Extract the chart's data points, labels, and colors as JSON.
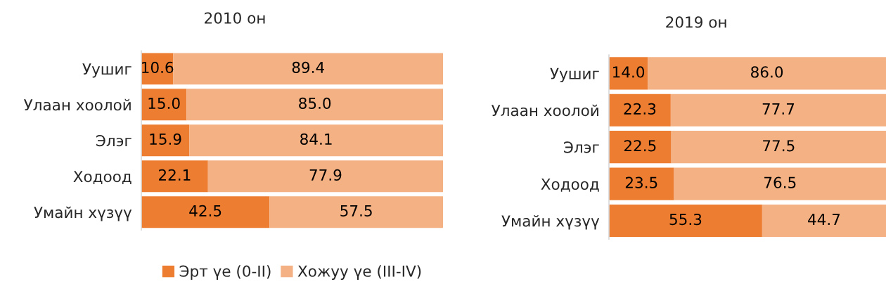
{
  "chart_data": [
    {
      "type": "bar",
      "orientation": "horizontal",
      "stacked": true,
      "title": "2010 он",
      "categories": [
        "Уушиг",
        "Улаан хоолой",
        "Элэг",
        "Ходоод",
        "Умайн хүзүү"
      ],
      "series": [
        {
          "name": "Эрт үе (0-II)",
          "color": "#ed7d31",
          "values": [
            10.6,
            15.0,
            15.9,
            22.1,
            42.5
          ],
          "value_labels": [
            "10.6",
            "15.0",
            "15.9",
            "22.1",
            "42.5"
          ]
        },
        {
          "name": "Хожуу үе (III-IV)",
          "color": "#f4b183",
          "values": [
            89.4,
            85.0,
            84.1,
            77.9,
            57.5
          ],
          "value_labels": [
            "89.4",
            "85.0",
            "84.1",
            "77.9",
            "57.5"
          ]
        }
      ],
      "legend": "bottom",
      "tick_labels": "y"
    },
    {
      "type": "bar",
      "orientation": "horizontal",
      "stacked": true,
      "title": "2019 он",
      "categories": [
        "Уушиг",
        "Улаан хоолой",
        "Элэг",
        "Ходоод",
        "Умайн хүзүү"
      ],
      "series": [
        {
          "color": "#ed7d31",
          "values": [
            14.0,
            22.3,
            22.5,
            23.5,
            55.3
          ],
          "value_labels": [
            "14.0",
            "22.3",
            "22.5",
            "23.5",
            "55.3"
          ]
        },
        {
          "color": "#f4b183",
          "values": [
            86.0,
            77.7,
            77.5,
            76.5,
            44.7
          ],
          "value_labels": [
            "86.0",
            "77.7",
            "77.5",
            "76.5",
            "44.7"
          ]
        }
      ],
      "tick_labels": "y"
    }
  ]
}
